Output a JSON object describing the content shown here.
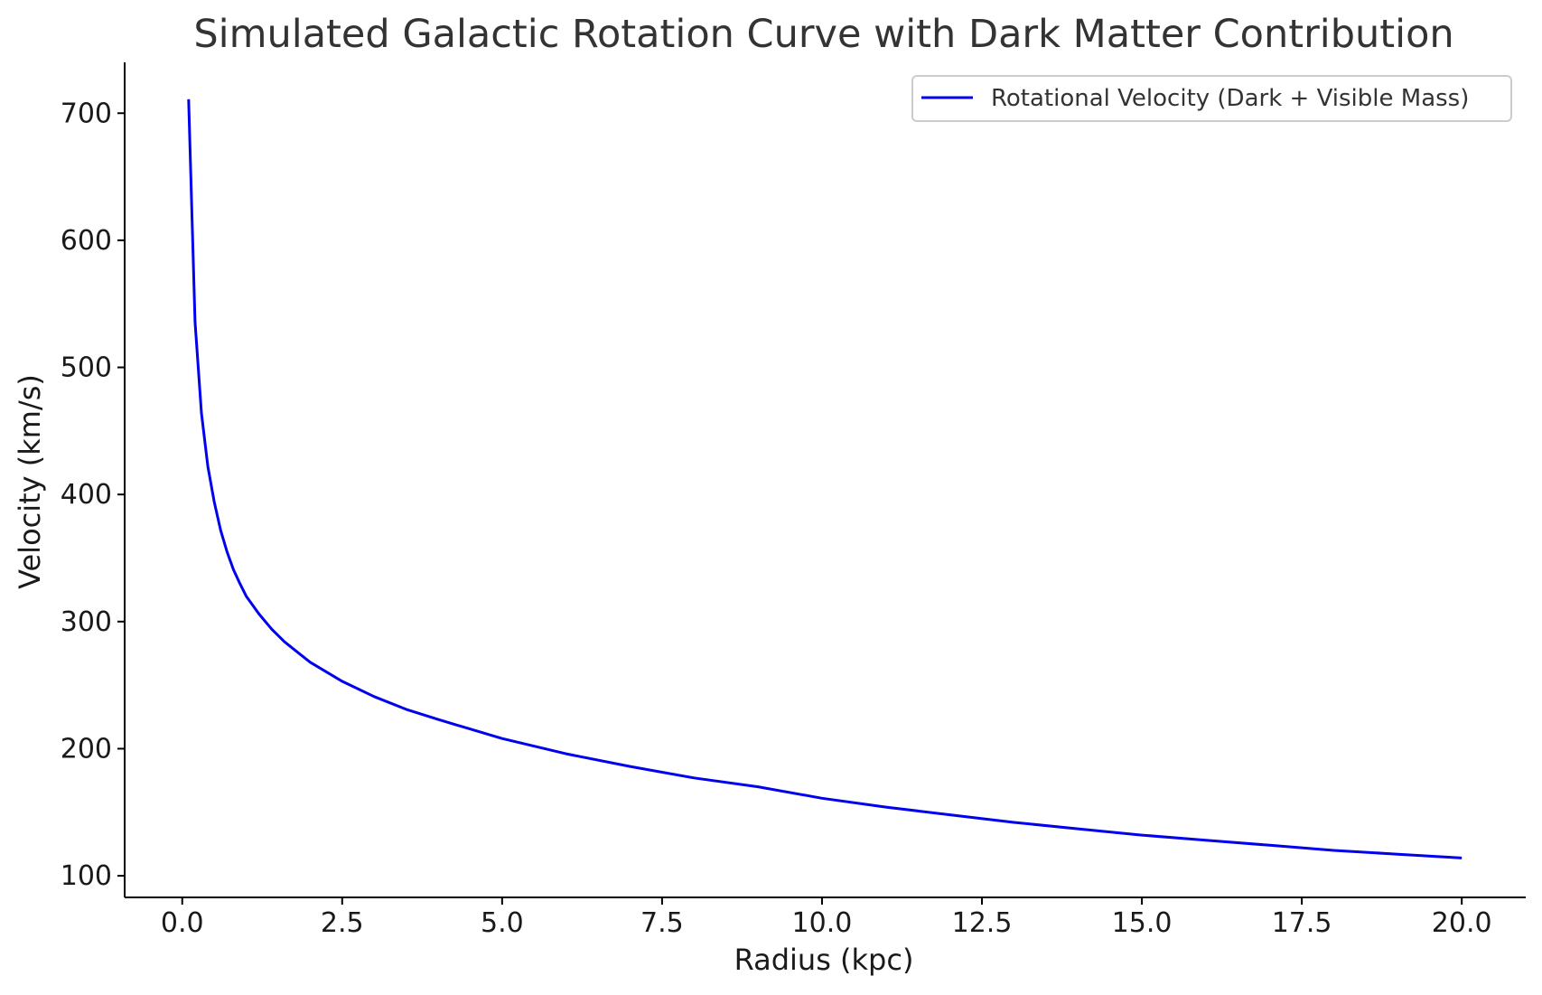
{
  "chart_data": {
    "type": "line",
    "title": "Simulated Galactic Rotation Curve with Dark Matter Contribution",
    "xlabel": "Radius (kpc)",
    "ylabel": "Velocity (km/s)",
    "xlim": [
      -0.9,
      21.0
    ],
    "ylim": [
      83,
      740
    ],
    "x_ticks": [
      0.0,
      2.5,
      5.0,
      7.5,
      10.0,
      12.5,
      15.0,
      17.5,
      20.0
    ],
    "x_tick_labels": [
      "0.0",
      "2.5",
      "5.0",
      "7.5",
      "10.0",
      "12.5",
      "15.0",
      "17.5",
      "20.0"
    ],
    "y_ticks": [
      100,
      200,
      300,
      400,
      500,
      600,
      700
    ],
    "y_tick_labels": [
      "100",
      "200",
      "300",
      "400",
      "500",
      "600",
      "700"
    ],
    "grid": false,
    "legend_position": "top-right",
    "series": [
      {
        "name": "Rotational Velocity (Dark + Visible Mass)",
        "color": "#0000ee",
        "x": [
          0.1,
          0.2,
          0.3,
          0.4,
          0.5,
          0.6,
          0.7,
          0.8,
          0.9,
          1.0,
          1.2,
          1.4,
          1.6,
          1.8,
          2.0,
          2.5,
          3.0,
          3.5,
          4.0,
          5.0,
          6.0,
          7.0,
          8.0,
          9.0,
          10.0,
          11.0,
          12.0,
          13.0,
          14.0,
          15.0,
          16.0,
          17.0,
          18.0,
          19.0,
          20.0
        ],
        "y": [
          711,
          536,
          464,
          422,
          394,
          372,
          355,
          341,
          330,
          320,
          306,
          294,
          284,
          276,
          268,
          253,
          241,
          231,
          223,
          208,
          196,
          186,
          177,
          170,
          161,
          154,
          148,
          142,
          137,
          132,
          128,
          124,
          120,
          117,
          114
        ]
      }
    ]
  }
}
